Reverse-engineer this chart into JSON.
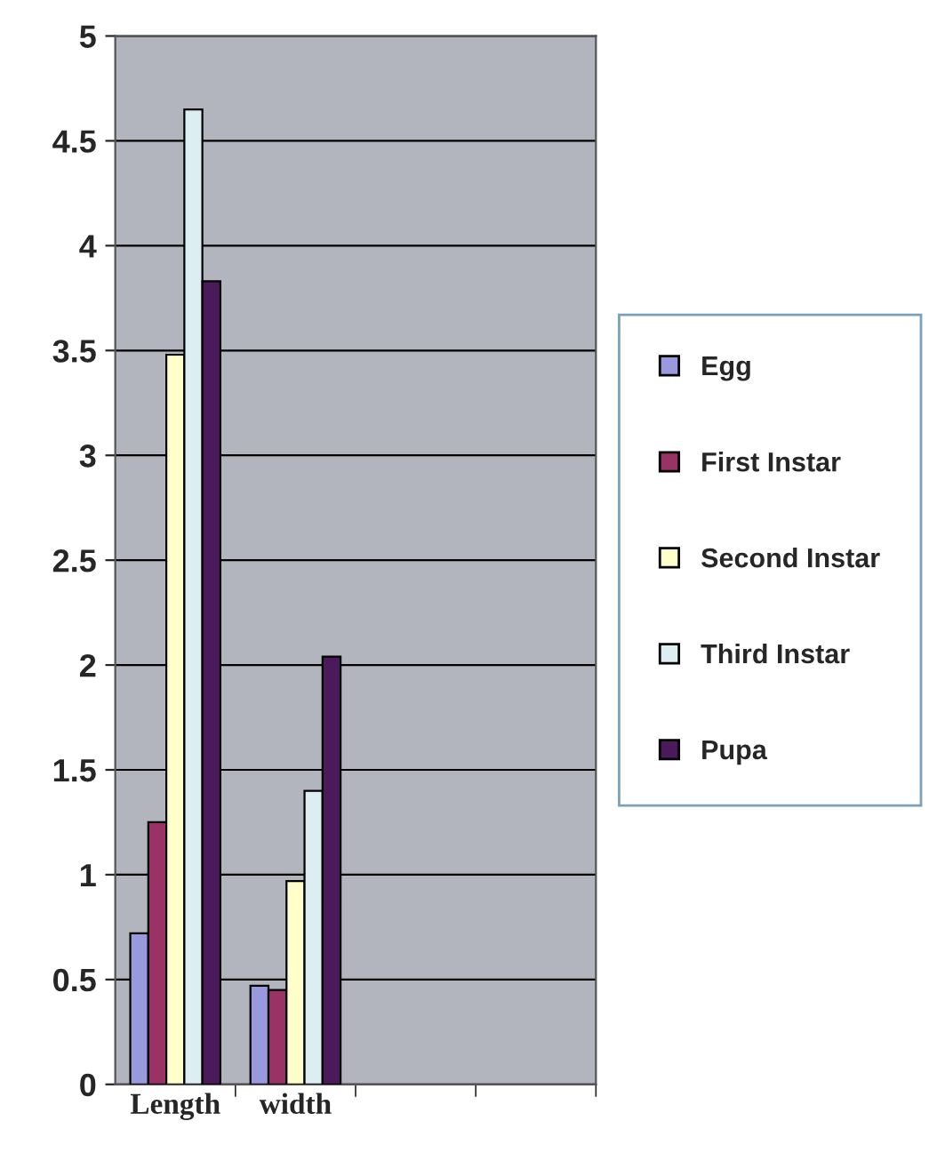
{
  "chart_data": {
    "type": "bar",
    "categories": [
      "Length",
      "width",
      null,
      null
    ],
    "series": [
      {
        "name": "Egg",
        "color": "#9999dd",
        "values": [
          0.72,
          0.47,
          null,
          null
        ]
      },
      {
        "name": "First Instar",
        "color": "#993366",
        "values": [
          1.25,
          0.45,
          null,
          null
        ]
      },
      {
        "name": "Second Instar",
        "color": "#ffffcc",
        "values": [
          3.48,
          0.97,
          null,
          null
        ]
      },
      {
        "name": "Third Instar",
        "color": "#ddeef2",
        "values": [
          4.65,
          1.4,
          null,
          null
        ]
      },
      {
        "name": "Pupa",
        "color": "#4b1a5a",
        "values": [
          3.83,
          2.04,
          null,
          null
        ]
      }
    ],
    "ylim": [
      0,
      5
    ],
    "yticks": [
      0,
      0.5,
      1,
      1.5,
      2,
      2.5,
      3,
      3.5,
      4,
      4.5,
      5
    ],
    "grid": "y",
    "legend": "right"
  }
}
